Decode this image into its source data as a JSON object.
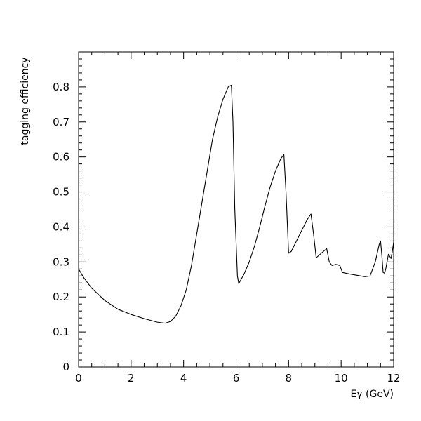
{
  "chart_data": {
    "type": "line",
    "title": "",
    "xlabel": "Eγ (GeV)",
    "ylabel": "tagging efficiency",
    "xlim": [
      0,
      12
    ],
    "ylim": [
      0,
      0.9
    ],
    "grid": false,
    "x_ticks": [
      0,
      2,
      4,
      6,
      8,
      10,
      12
    ],
    "x_tick_labels": [
      "0",
      "2",
      "4",
      "6",
      "8",
      "10",
      "12"
    ],
    "y_ticks": [
      0,
      0.1,
      0.2,
      0.3,
      0.4,
      0.5,
      0.6,
      0.7,
      0.8
    ],
    "y_tick_labels": [
      "0",
      "0.1",
      "0.2",
      "0.3",
      "0.4",
      "0.5",
      "0.6",
      "0.7",
      "0.8"
    ],
    "series": [
      {
        "color": "#000000",
        "x": [
          0,
          0.2,
          0.5,
          1.0,
          1.5,
          2.0,
          2.5,
          3.0,
          3.3,
          3.5,
          3.7,
          3.9,
          4.1,
          4.3,
          4.5,
          4.7,
          4.9,
          5.1,
          5.3,
          5.5,
          5.7,
          5.82,
          5.88,
          5.95,
          6.05,
          6.1,
          6.3,
          6.5,
          6.7,
          6.9,
          7.1,
          7.3,
          7.5,
          7.7,
          7.82,
          7.9,
          8.0,
          8.1,
          8.3,
          8.5,
          8.7,
          8.85,
          8.95,
          9.05,
          9.2,
          9.45,
          9.55,
          9.65,
          9.8,
          9.95,
          10.05,
          10.3,
          10.6,
          10.9,
          11.1,
          11.3,
          11.45,
          11.5,
          11.55,
          11.6,
          11.65,
          11.7,
          11.8,
          11.9,
          11.95,
          12.0
        ],
        "y": [
          0.28,
          0.255,
          0.225,
          0.19,
          0.165,
          0.15,
          0.138,
          0.128,
          0.125,
          0.13,
          0.145,
          0.175,
          0.22,
          0.29,
          0.38,
          0.47,
          0.56,
          0.65,
          0.715,
          0.765,
          0.8,
          0.805,
          0.7,
          0.45,
          0.26,
          0.238,
          0.265,
          0.3,
          0.345,
          0.4,
          0.46,
          0.515,
          0.56,
          0.595,
          0.607,
          0.5,
          0.325,
          0.33,
          0.36,
          0.39,
          0.42,
          0.437,
          0.38,
          0.312,
          0.322,
          0.338,
          0.3,
          0.29,
          0.293,
          0.29,
          0.27,
          0.266,
          0.262,
          0.258,
          0.26,
          0.3,
          0.35,
          0.36,
          0.32,
          0.27,
          0.268,
          0.28,
          0.322,
          0.31,
          0.33,
          0.357
        ]
      }
    ]
  }
}
